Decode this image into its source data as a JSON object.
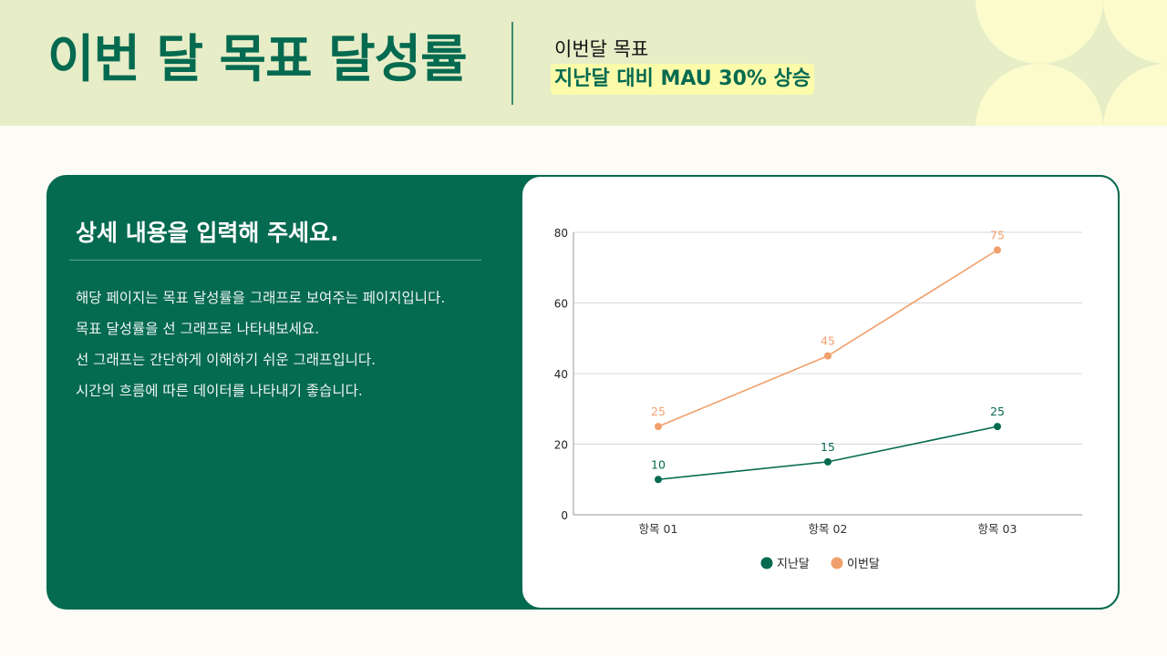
{
  "header": {
    "title": "이번 달 목표 달성률",
    "goal_label": "이번달 목표",
    "goal_value": "지난달 대비 MAU 30% 상승"
  },
  "card": {
    "title": "상세 내용을 입력해 주세요.",
    "lines": [
      "해당 페이지는 목표 달성률을 그래프로 보여주는 페이지입니다.",
      "목표 달성률을 선 그래프로 나타내보세요.",
      "선 그래프는 간단하게 이해하기 쉬운 그래프입니다.",
      "시간의 흐름에 따른 데이터를 나타내기 좋습니다."
    ]
  },
  "colors": {
    "brand_green": "#046a50",
    "accent_orange": "#f0a06c",
    "header_bg": "#e6edc7",
    "highlight_yellow": "#fbfbaa"
  },
  "chart_data": {
    "type": "line",
    "title": "",
    "xlabel": "",
    "ylabel": "",
    "categories": [
      "항목 01",
      "항목 02",
      "항목 03"
    ],
    "series": [
      {
        "name": "지난달",
        "values": [
          10,
          15,
          25
        ],
        "color": "#046a50"
      },
      {
        "name": "이번달",
        "values": [
          25,
          45,
          75
        ],
        "color": "#f0a06c"
      }
    ],
    "ylim": [
      0,
      80
    ],
    "yticks": [
      0,
      20,
      40,
      60,
      80
    ],
    "grid": true,
    "data_labels": true,
    "legend_position": "bottom"
  }
}
